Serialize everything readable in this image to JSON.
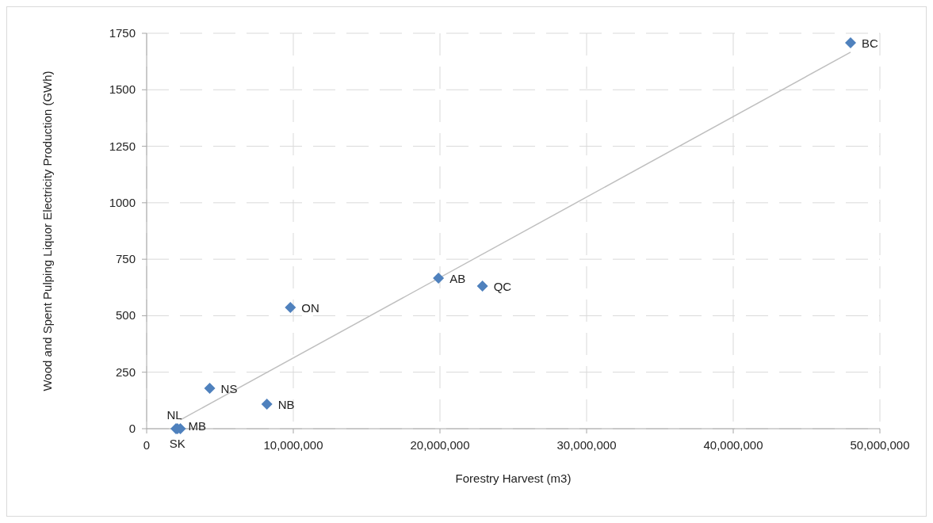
{
  "chart_data": {
    "type": "scatter",
    "xlabel": "Forestry Harvest (m3)",
    "ylabel": "Wood and Spent Pulping Liquor Electricity Production (GWh)",
    "xlim": [
      0,
      50000000
    ],
    "ylim": [
      0,
      1750
    ],
    "xticks": [
      0,
      {
        "value": 10000000,
        "label": "10,000,000"
      },
      {
        "value": 20000000,
        "label": "20,000,000"
      },
      {
        "value": 30000000,
        "label": "30,000,000"
      },
      {
        "value": 40000000,
        "label": "40,000,000"
      },
      {
        "value": 50000000,
        "label": "50,000,000"
      }
    ],
    "yticks": [
      0,
      250,
      500,
      750,
      1000,
      1250,
      1500,
      1750
    ],
    "grid": true,
    "marker": "diamond",
    "series": [
      {
        "color": "#4f81bd",
        "x": [
          48000000,
          19900000,
          22900000,
          9800000,
          4300000,
          8200000,
          2000000,
          2300000,
          2100000
        ],
        "values": [
          1708,
          666,
          631,
          537,
          179,
          109,
          0,
          0,
          0
        ]
      },
      {
        "type": "line",
        "color": "#bfbfbf",
        "marker": "none",
        "x": [
          2300000,
          48000000
        ],
        "values": [
          39,
          1666
        ]
      }
    ],
    "annotations": [
      {
        "text": "BC",
        "x": 48000000,
        "y": 1708
      },
      {
        "text": "AB",
        "x": 19900000,
        "y": 666
      },
      {
        "text": "QC",
        "x": 22900000,
        "y": 631
      },
      {
        "text": "ON",
        "x": 9800000,
        "y": 537
      },
      {
        "text": "NS",
        "x": 4300000,
        "y": 179
      },
      {
        "text": "NB",
        "x": 8200000,
        "y": 109
      },
      {
        "text": "NL",
        "x": 2000000,
        "y": 0
      },
      {
        "text": "MB",
        "x": 2300000,
        "y": 0
      },
      {
        "text": "SK",
        "x": 2100000,
        "y": 0
      }
    ]
  }
}
